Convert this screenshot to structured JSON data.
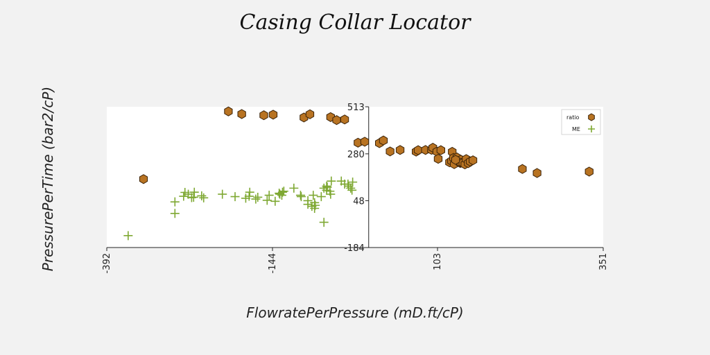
{
  "chart_data": {
    "type": "scatter",
    "title": "Casing Collar Locator",
    "xlabel": "FlowratePerPressure (mD.ft/cP)",
    "ylabel": "PressurePerTime (bar2/cP)",
    "xlim": [
      -392,
      351
    ],
    "ylim": [
      -184,
      513
    ],
    "xticks": [
      -392,
      -144,
      103,
      351
    ],
    "yticks": [
      -184,
      48,
      280,
      513
    ],
    "grid": false,
    "legend_position": "top-right",
    "colors": {
      "ratio_fill": "#b87322",
      "ratio_edge": "#3a2208",
      "ME": "#7ea832",
      "plot_bg": "#ffffff",
      "page_bg": "#f2f2f2"
    },
    "series": [
      {
        "name": "ratio",
        "marker": "hexagon",
        "x": [
          -337,
          -210,
          -190,
          -157,
          -143,
          -102,
          -97,
          -88,
          -57,
          -48,
          -36,
          -42,
          -16,
          -6,
          16,
          22,
          32,
          47,
          71,
          74,
          85,
          94,
          96,
          102,
          104,
          108,
          125,
          121,
          124,
          127,
          128,
          132,
          137,
          138,
          138,
          141,
          144,
          146,
          149,
          152,
          156,
          230,
          252,
          330,
          130
        ],
        "y": [
          155,
          490,
          477,
          471,
          474,
          580,
          460,
          476,
          462,
          447,
          450,
          545,
          335,
          340,
          333,
          346,
          292,
          299,
          291,
          298,
          299,
          300,
          310,
          291,
          255,
          298,
          290,
          238,
          245,
          260,
          229,
          262,
          235,
          251,
          236,
          235,
          228,
          254,
          234,
          242,
          248,
          205,
          185,
          192,
          250
        ]
      },
      {
        "name": "ME",
        "marker": "plus",
        "x": [
          -360,
          -290,
          -290,
          -277,
          -275,
          -270,
          -265,
          -261,
          -262,
          -247,
          -250,
          -219,
          -200,
          -184,
          -178,
          -179,
          -169,
          -166,
          -152,
          -140,
          -149,
          -133,
          -134,
          -130,
          -129,
          -127,
          -112,
          -102,
          -101,
          -91,
          -91,
          -81,
          -85,
          -81,
          -80,
          -83,
          -71,
          -67,
          -67,
          -63,
          -57,
          -63,
          -56,
          -62,
          -58,
          -41,
          -36,
          -31,
          -30,
          -27,
          -25,
          -24
        ],
        "y": [
          -125,
          42,
          -15,
          70,
          89,
          80,
          63,
          90,
          65,
          62,
          72,
          80,
          68,
          60,
          90,
          70,
          56,
          65,
          50,
          45,
          75,
          80,
          85,
          75,
          90,
          95,
          110,
          75,
          68,
          30,
          48,
          38,
          20,
          10,
          25,
          75,
          68,
          -59,
          110,
          100,
          80,
          120,
          145,
          115,
          95,
          145,
          130,
          130,
          120,
          110,
          100,
          140
        ]
      }
    ]
  }
}
